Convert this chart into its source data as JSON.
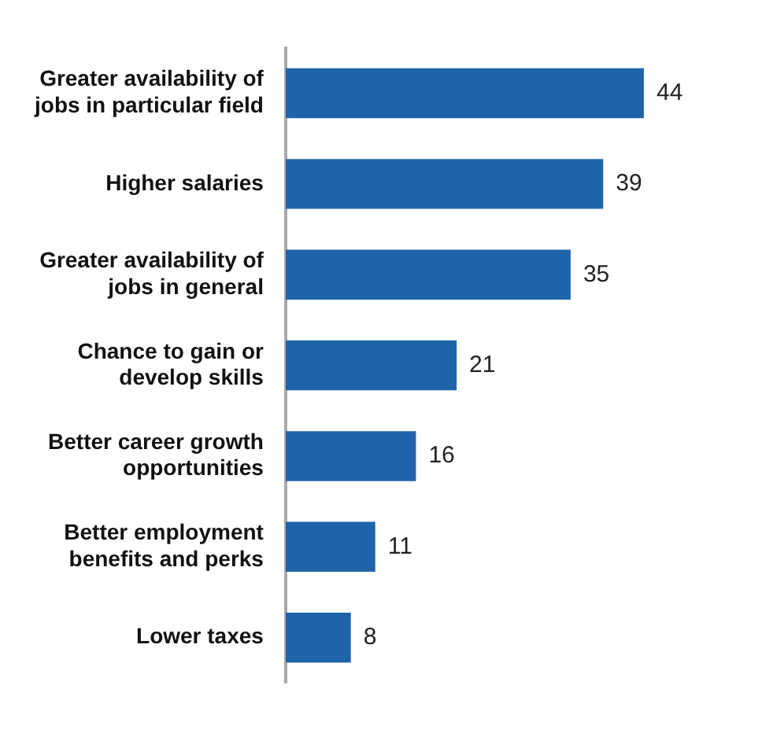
{
  "chart_data": {
    "type": "bar",
    "orientation": "horizontal",
    "categories": [
      "Greater availability of jobs in particular field",
      "Higher salaries",
      "Greater availability of jobs in general",
      "Chance to gain or develop skills",
      "Better career growth opportunities",
      "Better employment benefits and perks",
      "Lower taxes"
    ],
    "values": [
      44,
      39,
      35,
      21,
      16,
      11,
      8
    ],
    "color": "#1f64a8",
    "data_labels": true,
    "grid": false,
    "legend": false
  }
}
